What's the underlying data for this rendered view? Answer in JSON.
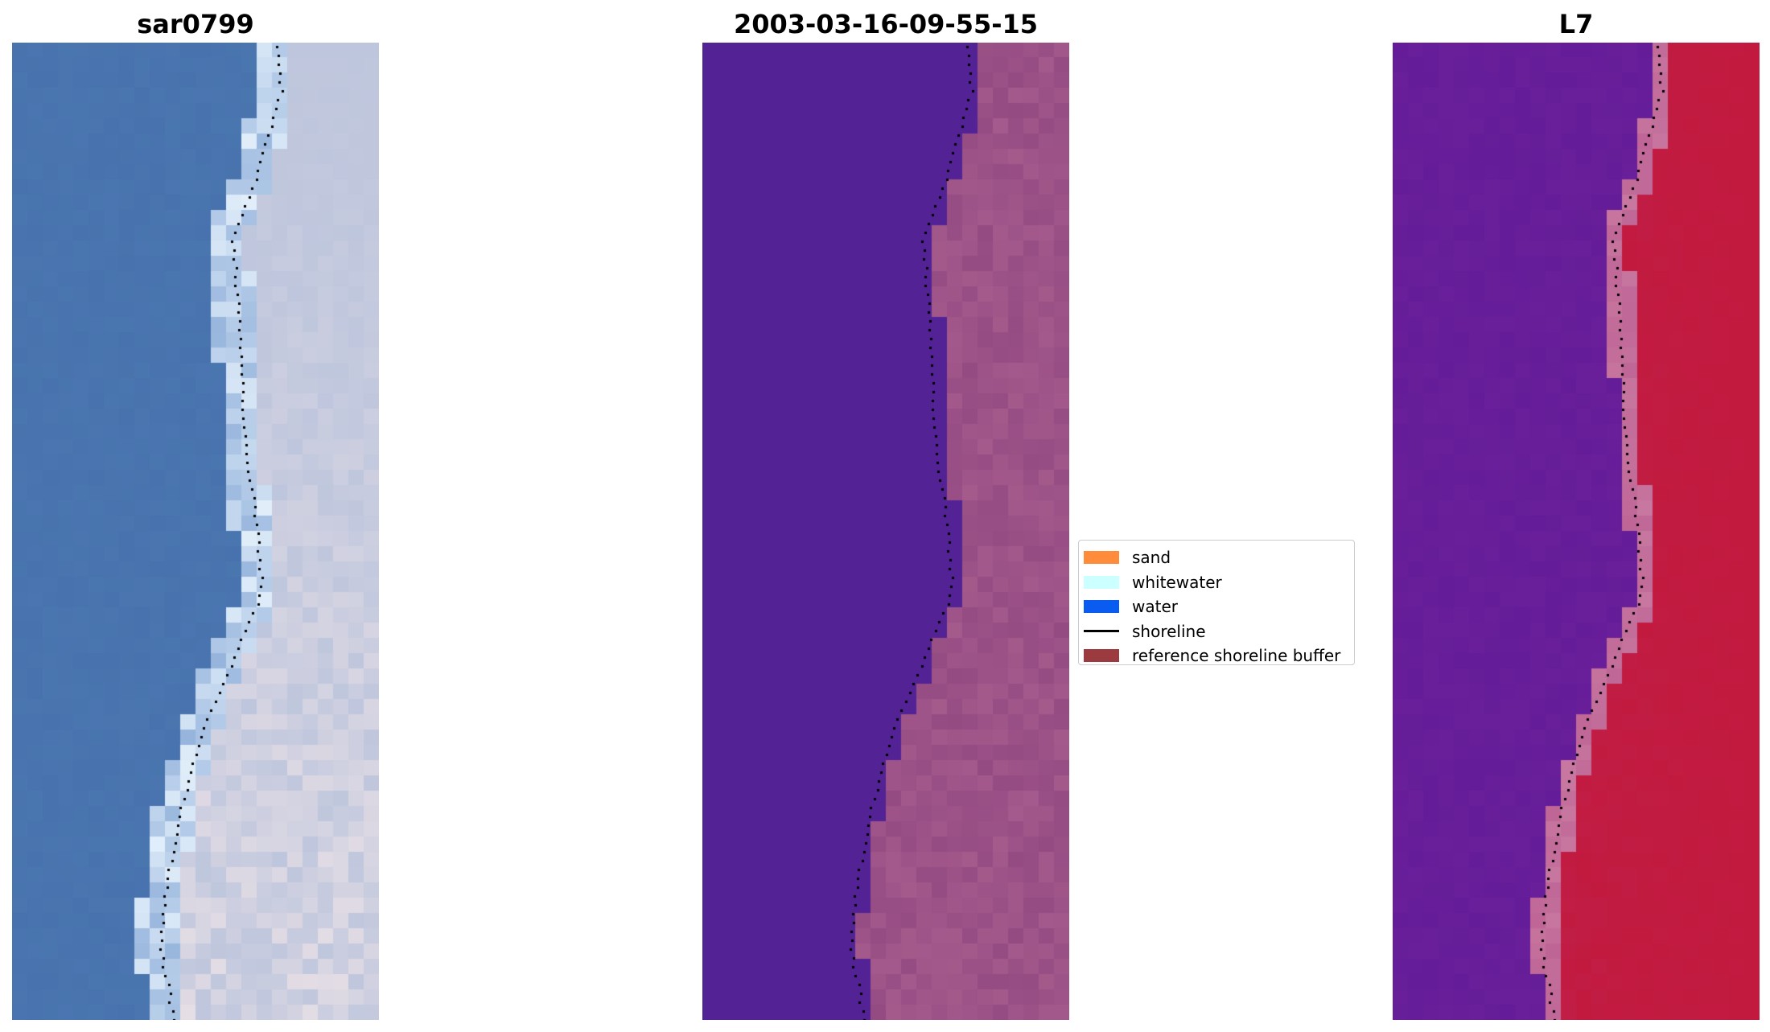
{
  "panels": [
    {
      "title": "sar0799",
      "kind": "rgb",
      "icon": "satellite-rgb-image"
    },
    {
      "title": "2003-03-16-09-55-15",
      "kind": "classified",
      "icon": "classified-image"
    },
    {
      "title": "L7",
      "kind": "index",
      "icon": "mndwi-index-image"
    }
  ],
  "legend": {
    "items": [
      {
        "label": "sand",
        "color": "#ff8c3b",
        "type": "patch"
      },
      {
        "label": "whitewater",
        "color": "#ccffff",
        "type": "patch"
      },
      {
        "label": "water",
        "color": "#0a5cf0",
        "type": "patch"
      },
      {
        "label": "shoreline",
        "color": "#000000",
        "type": "line"
      },
      {
        "label": "reference shoreline buffer",
        "color": "#9b3a3f",
        "type": "patch"
      }
    ]
  },
  "colors": {
    "rgb_water": "#4a76b0",
    "rgb_land": "#b9c3dc",
    "classified_water": "#532396",
    "classified_land": "#a55a8c",
    "index_water": "#6a1f9a",
    "index_land": "#c21a3f",
    "shoreline": "#000000"
  }
}
